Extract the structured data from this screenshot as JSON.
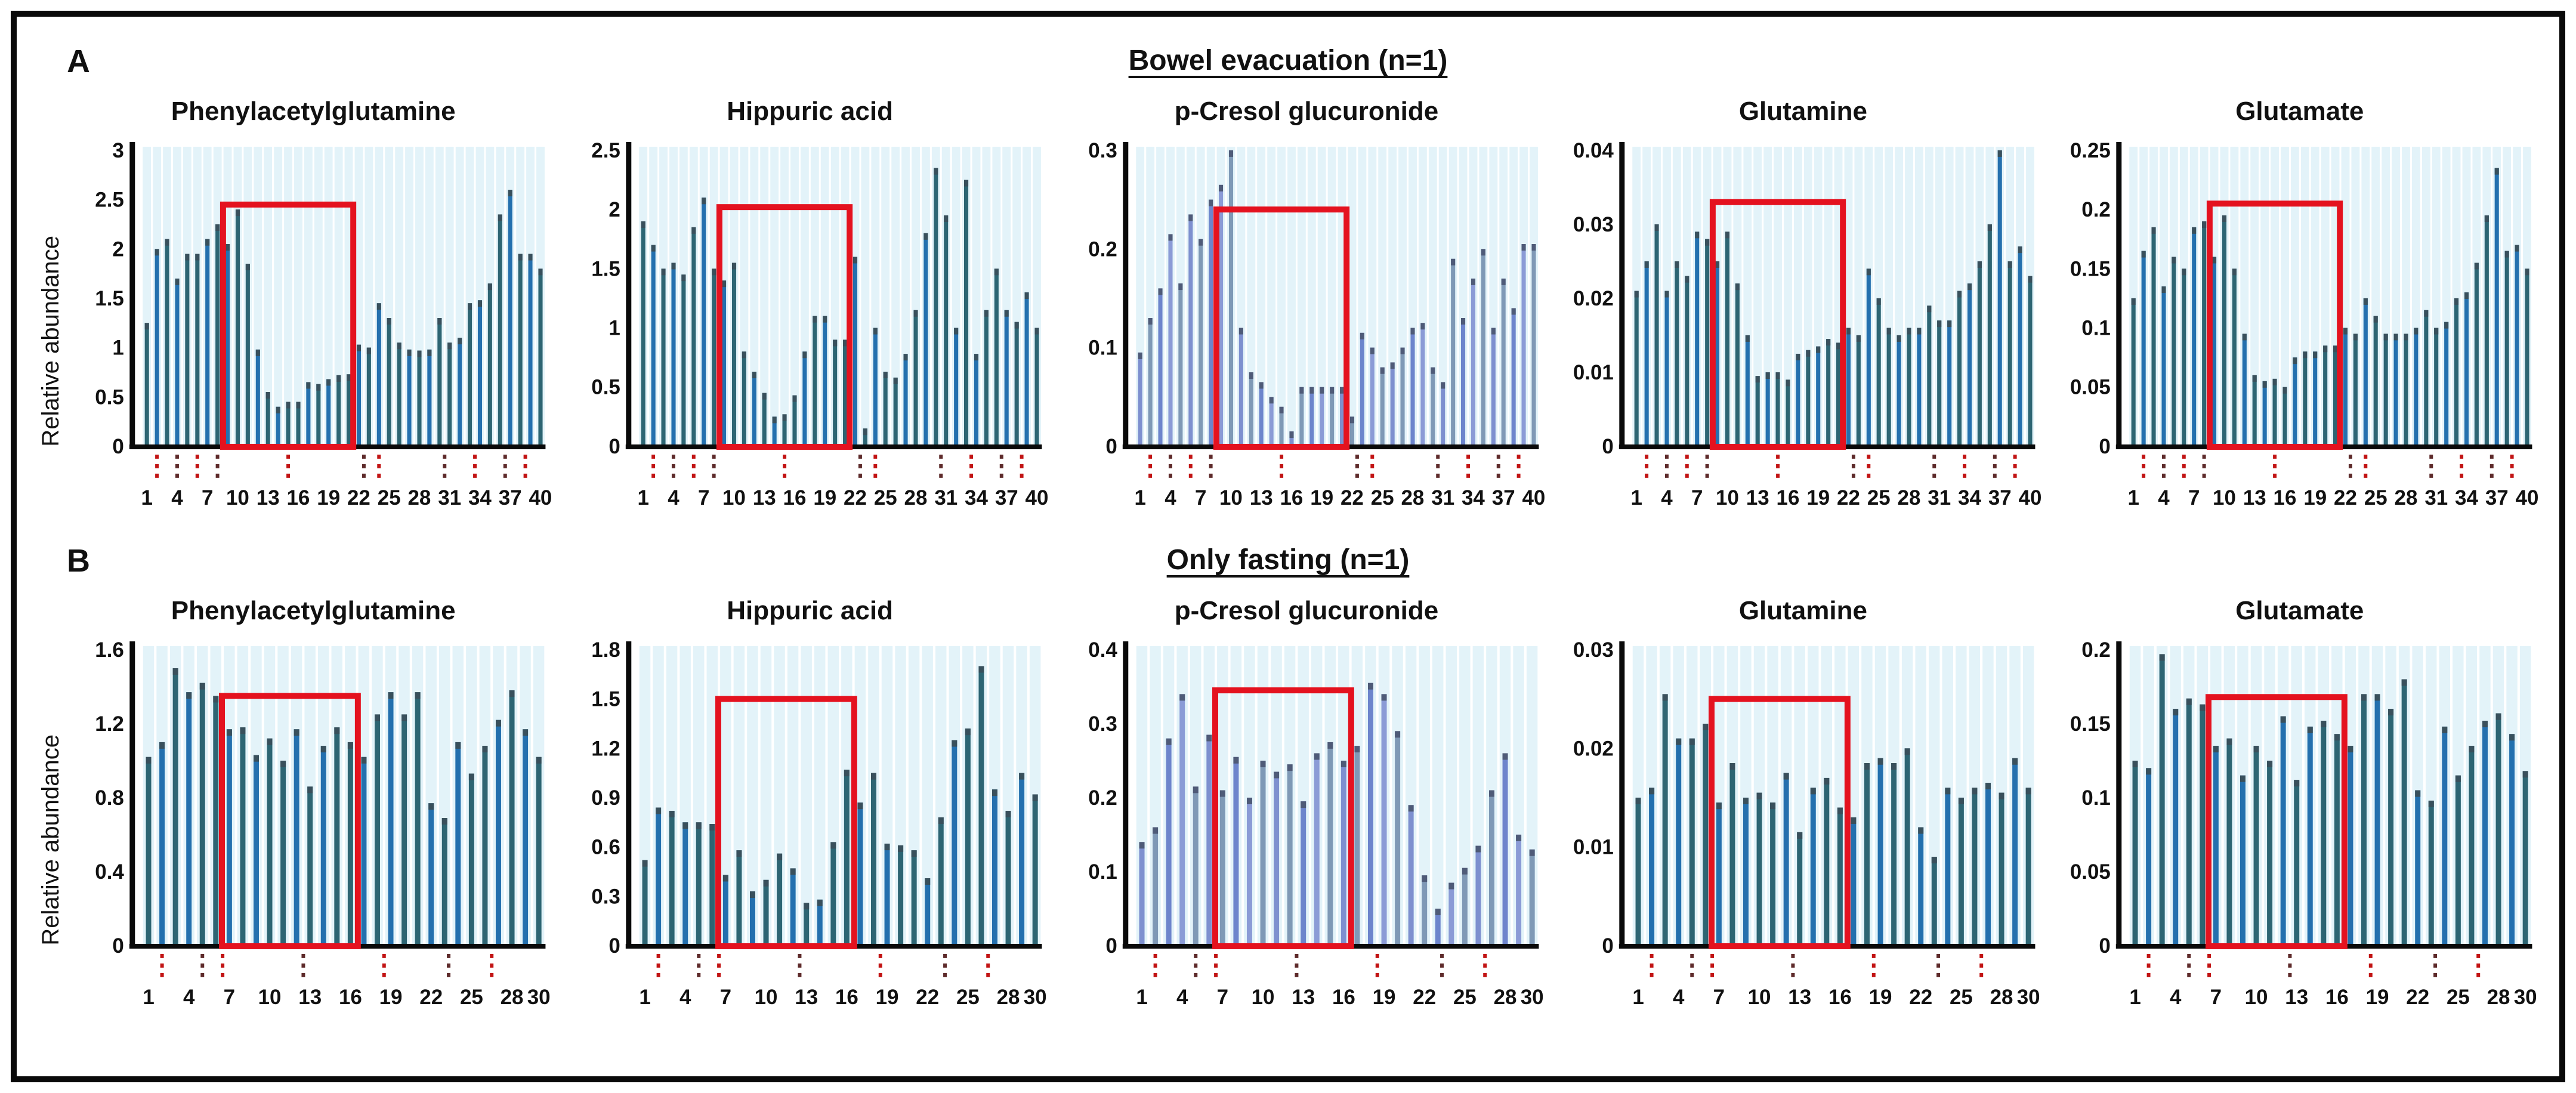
{
  "figure": {
    "panel_a": {
      "label": "A",
      "title": "Bowel evacuation (n=1)",
      "ylabel": "Relative abundance"
    },
    "panel_b": {
      "label": "B",
      "title": "Only fasting (n=1)",
      "ylabel": "Relative abundance"
    }
  },
  "style": {
    "red_box_color": "#e4121f",
    "axis_color": "#0a0a0a",
    "stripe_color": "#e3f3f9",
    "dotted_tick_colors": [
      "#c21414",
      "#5e2b2b"
    ],
    "palette_default": [
      "#2d6573",
      "#2470ae",
      "#2d6573",
      "#2470ae",
      "#2d6573"
    ],
    "palette_light": [
      "#7e90cf",
      "#7f99b6",
      "#6d85cc",
      "#8b9bd6",
      "#7f99b6"
    ],
    "cap_default": "#39505c",
    "cap_light": "#4f5b78"
  },
  "chart_data": [
    {
      "type": "bar",
      "panel": "A",
      "title": "Phenylacetylglutamine",
      "ylim": [
        0,
        3
      ],
      "yticks": [
        0,
        0.5,
        1,
        1.5,
        2,
        2.5,
        3
      ],
      "ytick_labels": [
        "0",
        "0.5",
        "1",
        "1.5",
        "2",
        "2.5",
        "3"
      ],
      "xticks": [
        1,
        4,
        7,
        10,
        13,
        16,
        19,
        22,
        25,
        28,
        31,
        34,
        37,
        40
      ],
      "values": [
        1.25,
        2.0,
        2.1,
        1.7,
        1.95,
        1.95,
        2.1,
        2.25,
        2.05,
        2.4,
        1.85,
        0.98,
        0.55,
        0.4,
        0.45,
        0.45,
        0.65,
        0.63,
        0.68,
        0.72,
        0.73,
        1.03,
        1.0,
        1.45,
        1.3,
        1.05,
        0.98,
        0.97,
        0.98,
        1.3,
        1.05,
        1.1,
        1.45,
        1.48,
        1.65,
        2.35,
        2.6,
        1.95,
        1.95,
        1.8
      ],
      "highlight_box": {
        "x_start": 8.55,
        "x_end": 21.45,
        "y_top": 2.45
      },
      "red_dotted_ticks": [
        2,
        4,
        6,
        8,
        15,
        22.5,
        24,
        30.5,
        33.5,
        36.5,
        38.5
      ],
      "palette": "default"
    },
    {
      "type": "bar",
      "panel": "A",
      "title": "Hippuric acid",
      "ylim": [
        0,
        2.5
      ],
      "yticks": [
        0,
        0.5,
        1,
        1.5,
        2,
        2.5
      ],
      "ytick_labels": [
        "0",
        "0.5",
        "1",
        "1.5",
        "2",
        "2.5"
      ],
      "xticks": [
        1,
        4,
        7,
        10,
        13,
        16,
        19,
        22,
        25,
        28,
        31,
        34,
        37,
        40
      ],
      "values": [
        1.9,
        1.7,
        1.5,
        1.55,
        1.45,
        1.85,
        2.1,
        1.5,
        1.4,
        1.55,
        0.8,
        0.63,
        0.45,
        0.25,
        0.27,
        0.43,
        0.8,
        1.1,
        1.1,
        0.9,
        0.9,
        1.6,
        0.15,
        1.0,
        0.63,
        0.58,
        0.78,
        1.15,
        1.8,
        2.35,
        1.95,
        1.0,
        2.25,
        0.78,
        1.15,
        1.5,
        1.15,
        1.05,
        1.3,
        1.0
      ],
      "highlight_box": {
        "x_start": 8.55,
        "x_end": 21.45,
        "y_top": 2.02
      },
      "red_dotted_ticks": [
        2,
        4,
        6,
        8,
        15,
        22.5,
        24,
        30.5,
        33.5,
        36.5,
        38.5
      ],
      "palette": "default"
    },
    {
      "type": "bar",
      "panel": "A",
      "title": "p-Cresol glucuronide",
      "ylim": [
        0,
        0.3
      ],
      "yticks": [
        0,
        0.1,
        0.2,
        0.3
      ],
      "ytick_labels": [
        "0",
        "0.1",
        "0.2",
        "0.3"
      ],
      "xticks": [
        1,
        4,
        7,
        10,
        13,
        16,
        19,
        22,
        25,
        28,
        31,
        34,
        37,
        40
      ],
      "values": [
        0.095,
        0.13,
        0.16,
        0.215,
        0.165,
        0.235,
        0.21,
        0.25,
        0.265,
        0.3,
        0.12,
        0.075,
        0.065,
        0.05,
        0.04,
        0.015,
        0.06,
        0.06,
        0.06,
        0.06,
        0.06,
        0.03,
        0.115,
        0.1,
        0.08,
        0.085,
        0.1,
        0.12,
        0.125,
        0.08,
        0.065,
        0.19,
        0.13,
        0.17,
        0.2,
        0.12,
        0.17,
        0.14,
        0.205,
        0.205
      ],
      "highlight_box": {
        "x_start": 8.55,
        "x_end": 21.45,
        "y_top": 0.24
      },
      "red_dotted_ticks": [
        2,
        4,
        6,
        8,
        15,
        22.5,
        24,
        30.5,
        33.5,
        36.5,
        38.5
      ],
      "palette": "light"
    },
    {
      "type": "bar",
      "panel": "A",
      "title": "Glutamine",
      "ylim": [
        0,
        0.04
      ],
      "yticks": [
        0,
        0.01,
        0.02,
        0.03,
        0.04
      ],
      "ytick_labels": [
        "0",
        "0.01",
        "0.02",
        "0.03",
        "0.04"
      ],
      "xticks": [
        1,
        4,
        7,
        10,
        13,
        16,
        19,
        22,
        25,
        28,
        31,
        34,
        37,
        40
      ],
      "values": [
        0.021,
        0.025,
        0.03,
        0.021,
        0.025,
        0.023,
        0.029,
        0.028,
        0.025,
        0.029,
        0.022,
        0.015,
        0.0095,
        0.01,
        0.01,
        0.009,
        0.0125,
        0.013,
        0.0135,
        0.0145,
        0.014,
        0.016,
        0.015,
        0.024,
        0.02,
        0.016,
        0.015,
        0.016,
        0.016,
        0.019,
        0.017,
        0.017,
        0.021,
        0.022,
        0.025,
        0.03,
        0.04,
        0.025,
        0.027,
        0.023
      ],
      "highlight_box": {
        "x_start": 8.55,
        "x_end": 21.45,
        "y_top": 0.033
      },
      "red_dotted_ticks": [
        2,
        4,
        6,
        8,
        15,
        22.5,
        24,
        30.5,
        33.5,
        36.5,
        38.5
      ],
      "palette": "default"
    },
    {
      "type": "bar",
      "panel": "A",
      "title": "Glutamate",
      "ylim": [
        0,
        0.25
      ],
      "yticks": [
        0,
        0.05,
        0.1,
        0.15,
        0.2,
        0.25
      ],
      "ytick_labels": [
        "0",
        "0.05",
        "0.1",
        "0.15",
        "0.2",
        "0.25"
      ],
      "xticks": [
        1,
        4,
        7,
        10,
        13,
        16,
        19,
        22,
        25,
        28,
        31,
        34,
        37,
        40
      ],
      "values": [
        0.125,
        0.165,
        0.185,
        0.135,
        0.16,
        0.15,
        0.185,
        0.19,
        0.16,
        0.195,
        0.15,
        0.095,
        0.06,
        0.055,
        0.057,
        0.05,
        0.075,
        0.08,
        0.08,
        0.085,
        0.085,
        0.1,
        0.095,
        0.125,
        0.11,
        0.095,
        0.095,
        0.095,
        0.1,
        0.115,
        0.1,
        0.105,
        0.125,
        0.13,
        0.155,
        0.195,
        0.235,
        0.165,
        0.17,
        0.15
      ],
      "highlight_box": {
        "x_start": 8.55,
        "x_end": 21.45,
        "y_top": 0.205
      },
      "red_dotted_ticks": [
        2,
        4,
        6,
        8,
        15,
        22.5,
        24,
        30.5,
        33.5,
        36.5,
        38.5
      ],
      "palette": "default"
    },
    {
      "type": "bar",
      "panel": "B",
      "title": "Phenylacetylglutamine",
      "ylim": [
        0,
        1.6
      ],
      "yticks": [
        0,
        0.4,
        0.8,
        1.2,
        1.6
      ],
      "ytick_labels": [
        "0",
        "0.4",
        "0.8",
        "1.2",
        "1.6"
      ],
      "xticks": [
        1,
        4,
        7,
        10,
        13,
        16,
        19,
        22,
        25,
        28,
        30
      ],
      "values": [
        1.02,
        1.1,
        1.5,
        1.37,
        1.42,
        1.35,
        1.17,
        1.18,
        1.03,
        1.12,
        1.0,
        1.17,
        0.86,
        1.08,
        1.18,
        1.1,
        1.02,
        1.25,
        1.37,
        1.25,
        1.37,
        0.77,
        0.69,
        1.1,
        0.93,
        1.08,
        1.22,
        1.38,
        1.17,
        1.02
      ],
      "highlight_box": {
        "x_start": 6.45,
        "x_end": 16.55,
        "y_top": 1.35
      },
      "red_dotted_ticks": [
        2,
        5,
        6.5,
        12.5,
        18.5,
        23.3,
        26.5
      ],
      "palette": "default"
    },
    {
      "type": "bar",
      "panel": "B",
      "title": "Hippuric acid",
      "ylim": [
        0,
        1.8
      ],
      "yticks": [
        0,
        0.3,
        0.6,
        0.9,
        1.2,
        1.5,
        1.8
      ],
      "ytick_labels": [
        "0",
        "0.3",
        "0.6",
        "0.9",
        "1.2",
        "1.5",
        "1.8"
      ],
      "xticks": [
        1,
        4,
        7,
        10,
        13,
        16,
        19,
        22,
        25,
        28,
        30
      ],
      "values": [
        0.52,
        0.84,
        0.82,
        0.75,
        0.75,
        0.74,
        0.43,
        0.58,
        0.33,
        0.4,
        0.56,
        0.47,
        0.26,
        0.28,
        0.63,
        1.07,
        0.87,
        1.05,
        0.62,
        0.61,
        0.58,
        0.41,
        0.78,
        1.25,
        1.32,
        1.7,
        0.95,
        0.82,
        1.05,
        0.92
      ],
      "highlight_box": {
        "x_start": 6.45,
        "x_end": 16.55,
        "y_top": 1.5
      },
      "red_dotted_ticks": [
        2,
        5,
        6.5,
        12.5,
        18.5,
        23.3,
        26.5
      ],
      "palette": "default"
    },
    {
      "type": "bar",
      "panel": "B",
      "title": "p-Cresol glucuronide",
      "ylim": [
        0,
        0.4
      ],
      "yticks": [
        0,
        0.1,
        0.2,
        0.3,
        0.4
      ],
      "ytick_labels": [
        "0",
        "0.1",
        "0.2",
        "0.3",
        "0.4"
      ],
      "xticks": [
        1,
        4,
        7,
        10,
        13,
        16,
        19,
        22,
        25,
        28,
        30
      ],
      "values": [
        0.14,
        0.16,
        0.28,
        0.34,
        0.215,
        0.285,
        0.21,
        0.255,
        0.2,
        0.25,
        0.235,
        0.245,
        0.195,
        0.26,
        0.275,
        0.25,
        0.27,
        0.355,
        0.34,
        0.29,
        0.19,
        0.095,
        0.05,
        0.085,
        0.105,
        0.135,
        0.21,
        0.26,
        0.15,
        0.13
      ],
      "highlight_box": {
        "x_start": 6.45,
        "x_end": 16.55,
        "y_top": 0.345
      },
      "red_dotted_ticks": [
        2,
        5,
        6.5,
        12.5,
        18.5,
        23.3,
        26.5
      ],
      "palette": "light"
    },
    {
      "type": "bar",
      "panel": "B",
      "title": "Glutamine",
      "ylim": [
        0,
        0.03
      ],
      "yticks": [
        0,
        0.01,
        0.02,
        0.03
      ],
      "ytick_labels": [
        "0",
        "0.01",
        "0.02",
        "0.03"
      ],
      "xticks": [
        1,
        4,
        7,
        10,
        13,
        16,
        19,
        22,
        25,
        28,
        30
      ],
      "values": [
        0.015,
        0.016,
        0.0255,
        0.021,
        0.021,
        0.0225,
        0.0145,
        0.0185,
        0.015,
        0.0155,
        0.0145,
        0.0175,
        0.0115,
        0.016,
        0.017,
        0.014,
        0.013,
        0.0185,
        0.019,
        0.0185,
        0.02,
        0.012,
        0.009,
        0.016,
        0.015,
        0.016,
        0.0165,
        0.0155,
        0.019,
        0.016
      ],
      "highlight_box": {
        "x_start": 6.45,
        "x_end": 16.55,
        "y_top": 0.025
      },
      "red_dotted_ticks": [
        2,
        5,
        6.5,
        12.5,
        18.5,
        23.3,
        26.5
      ],
      "palette": "default"
    },
    {
      "type": "bar",
      "panel": "B",
      "title": "Glutamate",
      "ylim": [
        0,
        0.2
      ],
      "yticks": [
        0,
        0.05,
        0.1,
        0.15,
        0.2
      ],
      "ytick_labels": [
        "0",
        "0.05",
        "0.1",
        "0.15",
        "0.2"
      ],
      "xticks": [
        1,
        4,
        7,
        10,
        13,
        16,
        19,
        22,
        25,
        28,
        30
      ],
      "values": [
        0.125,
        0.12,
        0.197,
        0.16,
        0.167,
        0.163,
        0.135,
        0.14,
        0.115,
        0.135,
        0.125,
        0.155,
        0.112,
        0.148,
        0.152,
        0.143,
        0.135,
        0.17,
        0.17,
        0.16,
        0.18,
        0.105,
        0.098,
        0.148,
        0.115,
        0.135,
        0.152,
        0.157,
        0.143,
        0.118
      ],
      "highlight_box": {
        "x_start": 6.45,
        "x_end": 16.55,
        "y_top": 0.168
      },
      "red_dotted_ticks": [
        2,
        5,
        6.5,
        12.5,
        18.5,
        23.3,
        26.5
      ],
      "palette": "default"
    }
  ]
}
